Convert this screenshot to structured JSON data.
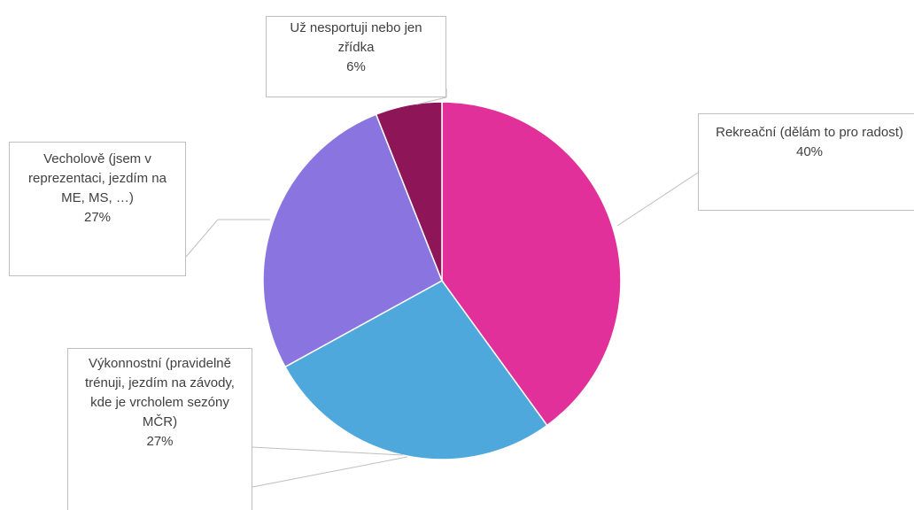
{
  "chart_data": {
    "type": "pie",
    "categories": [
      "Rekreační (dělám to pro radost)",
      "Výkonnostní (pravidelně trénuji, jezdím na závody, kde je vrcholem sezóny MČR)",
      "Vecholově (jsem v reprezentaci, jezdím na ME, MS, …)",
      "Už nesportuji nebo jen zřídka"
    ],
    "values": [
      40,
      27,
      27,
      6
    ],
    "value_labels": [
      "40%",
      "27%",
      "27%",
      "6%"
    ],
    "colors": [
      "#e2309a",
      "#4fa8dc",
      "#8a74e0",
      "#8e1558"
    ]
  }
}
